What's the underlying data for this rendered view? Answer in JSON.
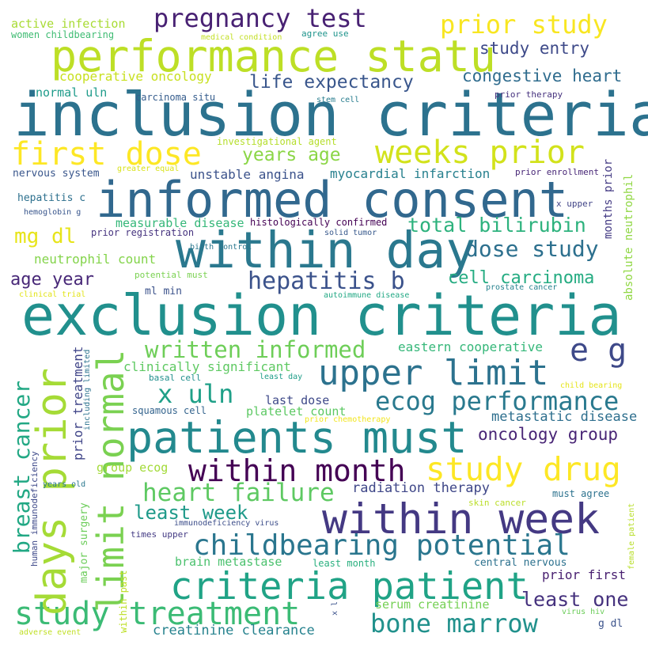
{
  "words": [
    {
      "text": "exclusion criteria",
      "color": "#21908d"
    },
    {
      "text": "inclusion criteria",
      "color": "#2c728e"
    },
    {
      "text": "informed consent",
      "color": "#31688e"
    },
    {
      "text": "patients must",
      "color": "#23898e"
    },
    {
      "text": "within day",
      "color": "#2a788e"
    },
    {
      "text": "performance statu",
      "color": "#bddf26"
    },
    {
      "text": "within week",
      "color": "#443983"
    },
    {
      "text": "study treatment",
      "color": "#3bbb75"
    },
    {
      "text": "criteria patient",
      "color": "#20a386"
    },
    {
      "text": "days prior",
      "color": "#a5db36"
    },
    {
      "text": "limit normal",
      "color": "#7ad151"
    },
    {
      "text": "weeks prior",
      "color": "#d2e21b"
    },
    {
      "text": "upper limit",
      "color": "#2c728e"
    },
    {
      "text": "study drug",
      "color": "#fde725"
    },
    {
      "text": "first dose",
      "color": "#fde725"
    },
    {
      "text": "childbearing potential",
      "color": "#2a768e"
    },
    {
      "text": "within month",
      "color": "#440154"
    },
    {
      "text": "bone marrow",
      "color": "#21918c"
    },
    {
      "text": "pregnancy test",
      "color": "#482173"
    },
    {
      "text": "prior study",
      "color": "#f8e621"
    },
    {
      "text": "ecog performance",
      "color": "#29798e"
    },
    {
      "text": "hepatitis b",
      "color": "#3b528b"
    },
    {
      "text": "written informed",
      "color": "#6ece58"
    },
    {
      "text": "x uln",
      "color": "#1fa088"
    },
    {
      "text": "heart failure",
      "color": "#5ec962"
    },
    {
      "text": "breast cancer",
      "color": "#22a884"
    },
    {
      "text": "e g",
      "color": "#3e4989"
    },
    {
      "text": "dose study",
      "color": "#2d708e"
    },
    {
      "text": "total bilirubin",
      "color": "#2db27d"
    },
    {
      "text": "least one",
      "color": "#46327e"
    },
    {
      "text": "cell carcinoma",
      "color": "#25ac82"
    },
    {
      "text": "least week",
      "color": "#1f9a8a"
    },
    {
      "text": "mg dl",
      "color": "#e7e419"
    },
    {
      "text": "age year",
      "color": "#482878"
    },
    {
      "text": "years age",
      "color": "#8bd646"
    },
    {
      "text": "life expectancy",
      "color": "#39568c"
    },
    {
      "text": "congestive heart",
      "color": "#2f6c8e"
    },
    {
      "text": "oncology group",
      "color": "#482475"
    },
    {
      "text": "study entry",
      "color": "#3e4a89"
    },
    {
      "text": "creatinine clearance",
      "color": "#26828e"
    },
    {
      "text": "clinically significant",
      "color": "#5ec962"
    },
    {
      "text": "eastern cooperative",
      "color": "#35b779"
    },
    {
      "text": "myocardial infarction",
      "color": "#27808e"
    },
    {
      "text": "radiation therapy",
      "color": "#3f4788"
    },
    {
      "text": "metastatic disease",
      "color": "#2e6f8e"
    },
    {
      "text": "unstable angina",
      "color": "#3b528b"
    },
    {
      "text": "prior treatment",
      "color": "#404588"
    },
    {
      "text": "cooperative oncology",
      "color": "#c8e020"
    },
    {
      "text": "neutrophil count",
      "color": "#84d44b"
    },
    {
      "text": "platelet count",
      "color": "#5cc863"
    },
    {
      "text": "measurable disease",
      "color": "#35b779"
    },
    {
      "text": "last dose",
      "color": "#3e4989"
    },
    {
      "text": "group ecog",
      "color": "#a2da37"
    },
    {
      "text": "brain metastase",
      "color": "#4ac16d"
    },
    {
      "text": "serum creatinine",
      "color": "#75d054"
    },
    {
      "text": "major surgery",
      "color": "#6ccd5a"
    },
    {
      "text": "prior first",
      "color": "#481f70"
    },
    {
      "text": "normal uln",
      "color": "#1e9b8a"
    },
    {
      "text": "months prior",
      "color": "#443b84"
    },
    {
      "text": "absolute neutrophil",
      "color": "#90d743"
    },
    {
      "text": "human immunodeficiency",
      "color": "#3e4989"
    },
    {
      "text": "within past",
      "color": "#bddf26"
    },
    {
      "text": "active infection",
      "color": "#a8db34"
    },
    {
      "text": "women childbearing",
      "color": "#3fbc73"
    },
    {
      "text": "nervous system",
      "color": "#39568c"
    },
    {
      "text": "hepatitis c",
      "color": "#2d708e"
    },
    {
      "text": "investigational agent",
      "color": "#b5de2b"
    },
    {
      "text": "prior registration",
      "color": "#46337f"
    },
    {
      "text": "histologically confirmed",
      "color": "#440154"
    },
    {
      "text": "potential must",
      "color": "#7ad151"
    },
    {
      "text": "ml min",
      "color": "#3b528b"
    },
    {
      "text": "carcinoma situ",
      "color": "#365d8d"
    },
    {
      "text": "squamous cell",
      "color": "#33638d"
    },
    {
      "text": "central nervous",
      "color": "#2c718e"
    },
    {
      "text": "least month",
      "color": "#2ab07f"
    },
    {
      "text": "must agree",
      "color": "#2c728e"
    },
    {
      "text": "times upper",
      "color": "#443b84"
    },
    {
      "text": "basal cell",
      "color": "#218f8d"
    },
    {
      "text": "including limited",
      "color": "#2c738e"
    },
    {
      "text": "x upper",
      "color": "#414487"
    },
    {
      "text": "prior enrollment",
      "color": "#482777"
    },
    {
      "text": "prior therapy",
      "color": "#46327e"
    },
    {
      "text": "g dl",
      "color": "#3b528b"
    },
    {
      "text": "medical condition",
      "color": "#c2df23"
    },
    {
      "text": "agree use",
      "color": "#1f948c"
    },
    {
      "text": "stem cell",
      "color": "#287d8e"
    },
    {
      "text": "greater equal",
      "color": "#d8e219"
    },
    {
      "text": "hemoglobin g",
      "color": "#39568c"
    },
    {
      "text": "birth control",
      "color": "#2a778e"
    },
    {
      "text": "solid tumor",
      "color": "#38598c"
    },
    {
      "text": "clinical trial",
      "color": "#e2e418"
    },
    {
      "text": "autoimmune disease",
      "color": "#22a884"
    },
    {
      "text": "prostate cancer",
      "color": "#26828e"
    },
    {
      "text": "least day",
      "color": "#1f9e89"
    },
    {
      "text": "child bearing",
      "color": "#e5e419"
    },
    {
      "text": "prior chemotherapy",
      "color": "#f1e51d"
    },
    {
      "text": "years old",
      "color": "#2a788e"
    },
    {
      "text": "skin cancer",
      "color": "#bade28"
    },
    {
      "text": "immunodeficiency virus",
      "color": "#3d4e8a"
    },
    {
      "text": "adverse event",
      "color": "#c0df25"
    },
    {
      "text": "virus hiv",
      "color": "#6ccd5a"
    },
    {
      "text": "female patient",
      "color": "#b8de29"
    },
    {
      "text": "x l",
      "color": "#3b528b"
    }
  ]
}
